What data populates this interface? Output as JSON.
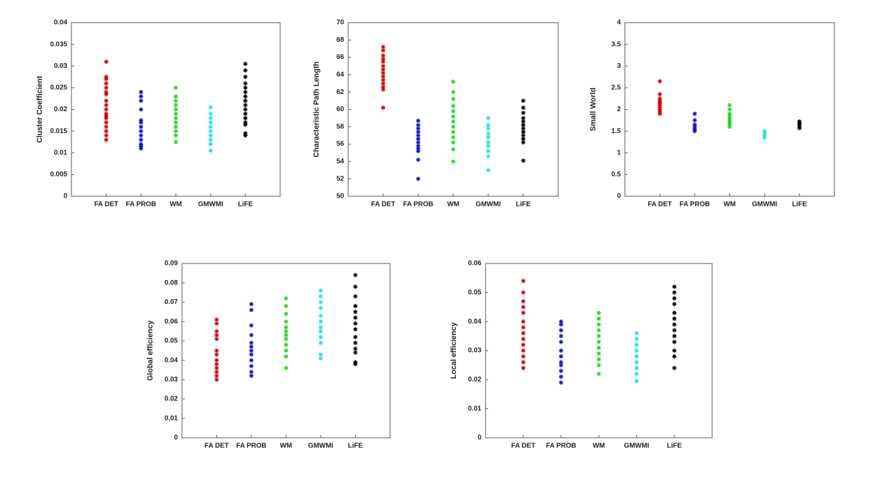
{
  "chart_data": [
    {
      "type": "strip",
      "y_label": "Cluster Coefficient",
      "categories": [
        "FA DET",
        "FA PROB",
        "WM",
        "GMWMI",
        "LiFE"
      ],
      "colors": [
        "#d40000",
        "#1010cc",
        "#22d822",
        "#22e2ee",
        "#000000"
      ],
      "values": [
        [
          0.031,
          0.0275,
          0.027,
          0.026,
          0.025,
          0.024,
          0.0235,
          0.022,
          0.021,
          0.02,
          0.019,
          0.0185,
          0.018,
          0.017,
          0.016,
          0.015,
          0.014,
          0.013
        ],
        [
          0.024,
          0.023,
          0.022,
          0.02,
          0.0175,
          0.017,
          0.016,
          0.015,
          0.014,
          0.013,
          0.012,
          0.0115,
          0.011
        ],
        [
          0.025,
          0.023,
          0.022,
          0.021,
          0.02,
          0.019,
          0.018,
          0.017,
          0.016,
          0.015,
          0.014,
          0.0125
        ],
        [
          0.0205,
          0.019,
          0.018,
          0.017,
          0.016,
          0.015,
          0.014,
          0.013,
          0.012,
          0.0105
        ],
        [
          0.0305,
          0.029,
          0.0275,
          0.026,
          0.025,
          0.024,
          0.023,
          0.022,
          0.021,
          0.02,
          0.019,
          0.018,
          0.017,
          0.0165,
          0.0145,
          0.014
        ]
      ],
      "ylim": [
        0,
        0.04
      ],
      "yticks": [
        0,
        0.005,
        0.01,
        0.015,
        0.02,
        0.025,
        0.03,
        0.035,
        0.04
      ]
    },
    {
      "type": "strip",
      "y_label": "Characteristic Path Length",
      "categories": [
        "FA DET",
        "FA PROB",
        "WM",
        "GMWMI",
        "LiFE"
      ],
      "colors": [
        "#d40000",
        "#1010cc",
        "#22d822",
        "#22e2ee",
        "#000000"
      ],
      "values": [
        [
          67.2,
          66.8,
          66.2,
          65.8,
          65.5,
          65,
          64.6,
          64.2,
          63.8,
          63.4,
          63,
          62.6,
          62.3,
          60.2
        ],
        [
          58.7,
          58.2,
          57.8,
          57.4,
          57,
          56.6,
          56.2,
          55.8,
          55.5,
          55.2,
          54.2,
          52
        ],
        [
          63.2,
          62,
          61.2,
          60.4,
          59.8,
          59.2,
          58.6,
          58,
          57.4,
          56.8,
          56.2,
          55.4,
          54
        ],
        [
          59,
          58.2,
          57.8,
          57.2,
          56.8,
          56.2,
          55.8,
          55.2,
          54.6,
          53
        ],
        [
          61,
          60.2,
          59.6,
          59,
          58.6,
          58.2,
          57.8,
          57.4,
          57,
          56.6,
          56.2,
          54.1
        ]
      ],
      "ylim": [
        50,
        70
      ],
      "yticks": [
        50,
        52,
        54,
        56,
        58,
        60,
        62,
        64,
        66,
        68,
        70
      ]
    },
    {
      "type": "strip",
      "y_label": "Small World",
      "categories": [
        "FA DET",
        "FA PROB",
        "WM",
        "GMWMI",
        "LiFE"
      ],
      "colors": [
        "#d40000",
        "#1010cc",
        "#22d822",
        "#22e2ee",
        "#000000"
      ],
      "values": [
        [
          2.65,
          2.35,
          2.25,
          2.2,
          2.15,
          2.1,
          2.05,
          2,
          1.95,
          1.9
        ],
        [
          1.9,
          1.75,
          1.65,
          1.6,
          1.55,
          1.5
        ],
        [
          2.1,
          2,
          1.9,
          1.85,
          1.8,
          1.75,
          1.7,
          1.65,
          1.6
        ],
        [
          1.5,
          1.45,
          1.4,
          1.35
        ],
        [
          1.72,
          1.68,
          1.65,
          1.6,
          1.57
        ]
      ],
      "ylim": [
        0,
        4
      ],
      "yticks": [
        0,
        0.5,
        1,
        1.5,
        2,
        2.5,
        3,
        3.5,
        4
      ]
    },
    {
      "type": "strip",
      "y_label": "Global efficiency",
      "categories": [
        "FA DET",
        "FA PROB",
        "WM",
        "GMWMI",
        "LiFE"
      ],
      "colors": [
        "#d40000",
        "#1010cc",
        "#22d822",
        "#22e2ee",
        "#000000"
      ],
      "values": [
        [
          0.061,
          0.059,
          0.055,
          0.053,
          0.051,
          0.045,
          0.043,
          0.04,
          0.038,
          0.036,
          0.034,
          0.032,
          0.03
        ],
        [
          0.069,
          0.066,
          0.058,
          0.053,
          0.049,
          0.047,
          0.045,
          0.043,
          0.04,
          0.037,
          0.034,
          0.032
        ],
        [
          0.072,
          0.068,
          0.064,
          0.06,
          0.057,
          0.055,
          0.053,
          0.051,
          0.048,
          0.045,
          0.042,
          0.036
        ],
        [
          0.076,
          0.073,
          0.07,
          0.067,
          0.063,
          0.06,
          0.057,
          0.055,
          0.052,
          0.049,
          0.043,
          0.041
        ],
        [
          0.084,
          0.078,
          0.073,
          0.068,
          0.065,
          0.062,
          0.059,
          0.056,
          0.052,
          0.049,
          0.046,
          0.044,
          0.039,
          0.038
        ]
      ],
      "ylim": [
        0,
        0.09
      ],
      "yticks": [
        0,
        0.01,
        0.02,
        0.03,
        0.04,
        0.05,
        0.06,
        0.07,
        0.08,
        0.09
      ]
    },
    {
      "type": "strip",
      "y_label": "Local efficiency",
      "categories": [
        "FA DET",
        "FA PROB",
        "WM",
        "GMWMI",
        "LiFE"
      ],
      "colors": [
        "#d40000",
        "#1010cc",
        "#22d822",
        "#22e2ee",
        "#000000"
      ],
      "values": [
        [
          0.054,
          0.05,
          0.047,
          0.045,
          0.043,
          0.04,
          0.038,
          0.036,
          0.034,
          0.032,
          0.03,
          0.028,
          0.026,
          0.024
        ],
        [
          0.04,
          0.039,
          0.037,
          0.035,
          0.033,
          0.03,
          0.028,
          0.026,
          0.025,
          0.023,
          0.021,
          0.019
        ],
        [
          0.043,
          0.041,
          0.039,
          0.037,
          0.035,
          0.033,
          0.031,
          0.029,
          0.027,
          0.025,
          0.022
        ],
        [
          0.036,
          0.034,
          0.032,
          0.03,
          0.028,
          0.026,
          0.024,
          0.022,
          0.0195
        ],
        [
          0.052,
          0.05,
          0.048,
          0.046,
          0.043,
          0.041,
          0.039,
          0.037,
          0.035,
          0.033,
          0.03,
          0.028,
          0.024
        ]
      ],
      "ylim": [
        0,
        0.06
      ],
      "yticks": [
        0,
        0.01,
        0.02,
        0.03,
        0.04,
        0.05,
        0.06
      ]
    }
  ]
}
